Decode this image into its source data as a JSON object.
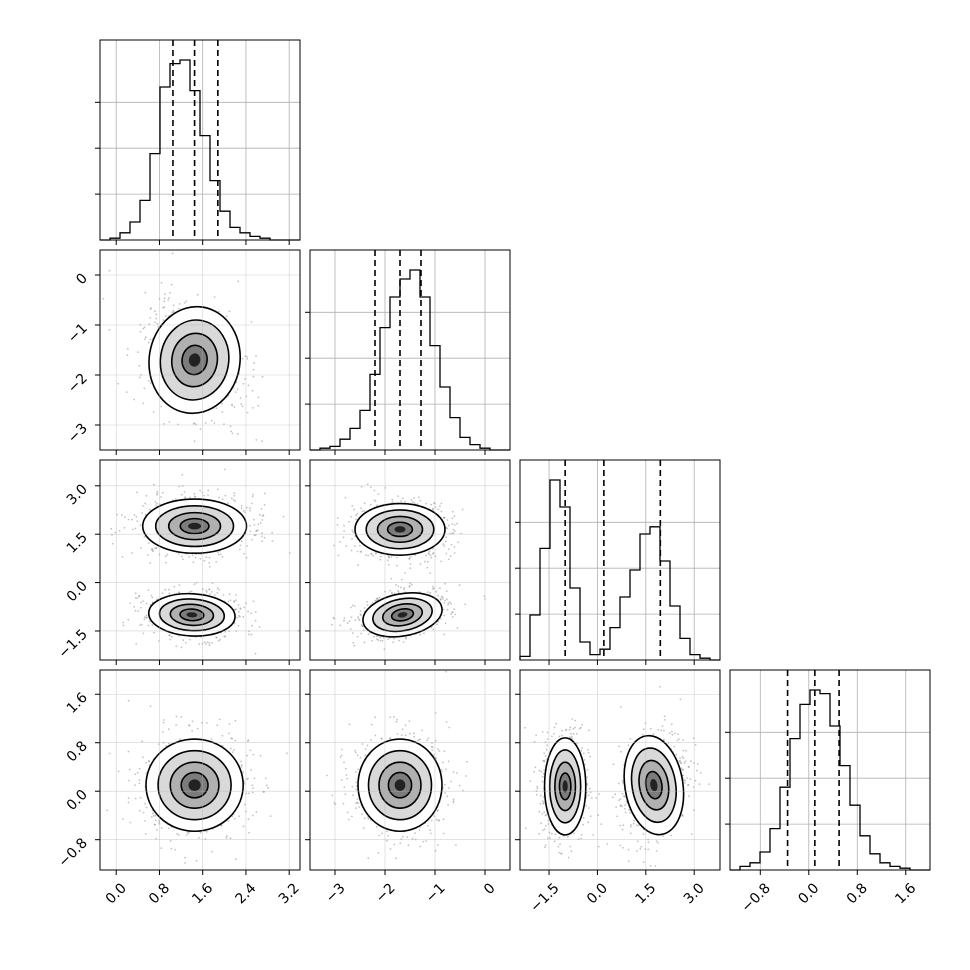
{
  "chart_data": {
    "type": "corner",
    "grid": true,
    "params": [
      {
        "range": [
          -0.3,
          3.4
        ],
        "ticks": [
          0.0,
          0.8,
          1.6,
          2.4,
          3.2
        ],
        "tick_labels": [
          "0.0",
          "0.8",
          "1.6",
          "2.4",
          "3.2"
        ],
        "quantiles": [
          1.05,
          1.45,
          1.88
        ],
        "hist": [
          0.0,
          0.01,
          0.04,
          0.1,
          0.22,
          0.48,
          0.85,
          0.98,
          1.0,
          0.83,
          0.58,
          0.33,
          0.16,
          0.07,
          0.04,
          0.02,
          0.01,
          0.0,
          0.0,
          0.0
        ]
      },
      {
        "range": [
          -3.5,
          0.5
        ],
        "ticks": [
          -3,
          -2,
          -1,
          0
        ],
        "tick_labels": [
          "−3",
          "−2",
          "−1",
          "0"
        ],
        "quantiles": [
          -2.2,
          -1.7,
          -1.28
        ],
        "hist": [
          0.0,
          0.01,
          0.02,
          0.06,
          0.12,
          0.22,
          0.42,
          0.68,
          0.85,
          0.95,
          1.0,
          0.85,
          0.58,
          0.35,
          0.18,
          0.07,
          0.03,
          0.01,
          0.0,
          0.0
        ]
      },
      {
        "range": [
          -2.4,
          3.8
        ],
        "ticks": [
          -1.5,
          0.0,
          1.5,
          3.0
        ],
        "tick_labels": [
          "−1.5",
          "0.0",
          "1.5",
          "3.0"
        ],
        "quantiles": [
          -1.0,
          0.2,
          1.95
        ],
        "hist": [
          0.02,
          0.25,
          0.62,
          1.0,
          0.85,
          0.4,
          0.1,
          0.03,
          0.06,
          0.18,
          0.35,
          0.5,
          0.7,
          0.74,
          0.55,
          0.3,
          0.12,
          0.03,
          0.01,
          0.0
        ]
      },
      {
        "range": [
          -1.3,
          2.0
        ],
        "ticks": [
          -0.8,
          0.0,
          0.8,
          1.6
        ],
        "tick_labels": [
          "−0.8",
          "0.0",
          "0.8",
          "1.6"
        ],
        "quantiles": [
          -0.35,
          0.1,
          0.5
        ],
        "hist": [
          0.0,
          0.02,
          0.04,
          0.1,
          0.23,
          0.46,
          0.73,
          0.92,
          1.0,
          0.98,
          0.8,
          0.58,
          0.36,
          0.19,
          0.09,
          0.04,
          0.02,
          0.01,
          0.0,
          0.0
        ]
      }
    ],
    "panels2d": [
      {
        "row": 1,
        "col": 0,
        "blobs": [
          {
            "cx": 1.45,
            "cy": -1.7,
            "sx": 0.42,
            "sy": 0.52,
            "rho": -0.3
          }
        ]
      },
      {
        "row": 2,
        "col": 0,
        "blobs": [
          {
            "cx": 1.45,
            "cy": 1.75,
            "sx": 0.48,
            "sy": 0.42,
            "rho": 0.0
          },
          {
            "cx": 1.4,
            "cy": -1.0,
            "sx": 0.4,
            "sy": 0.32,
            "rho": -0.1
          }
        ]
      },
      {
        "row": 2,
        "col": 1,
        "blobs": [
          {
            "cx": -1.7,
            "cy": 1.65,
            "sx": 0.45,
            "sy": 0.4,
            "rho": 0.0
          },
          {
            "cx": -1.65,
            "cy": -1.0,
            "sx": 0.4,
            "sy": 0.32,
            "rho": 0.35
          }
        ]
      },
      {
        "row": 3,
        "col": 0,
        "blobs": [
          {
            "cx": 1.45,
            "cy": 0.1,
            "sx": 0.45,
            "sy": 0.38,
            "rho": 0.0
          }
        ]
      },
      {
        "row": 3,
        "col": 1,
        "blobs": [
          {
            "cx": -1.7,
            "cy": 0.1,
            "sx": 0.42,
            "sy": 0.38,
            "rho": 0.0
          }
        ]
      },
      {
        "row": 3,
        "col": 2,
        "blobs": [
          {
            "cx": -1.0,
            "cy": 0.08,
            "sx": 0.32,
            "sy": 0.4,
            "rho": 0.0
          },
          {
            "cx": 1.75,
            "cy": 0.1,
            "sx": 0.45,
            "sy": 0.4,
            "rho": 0.3
          }
        ]
      }
    ]
  }
}
